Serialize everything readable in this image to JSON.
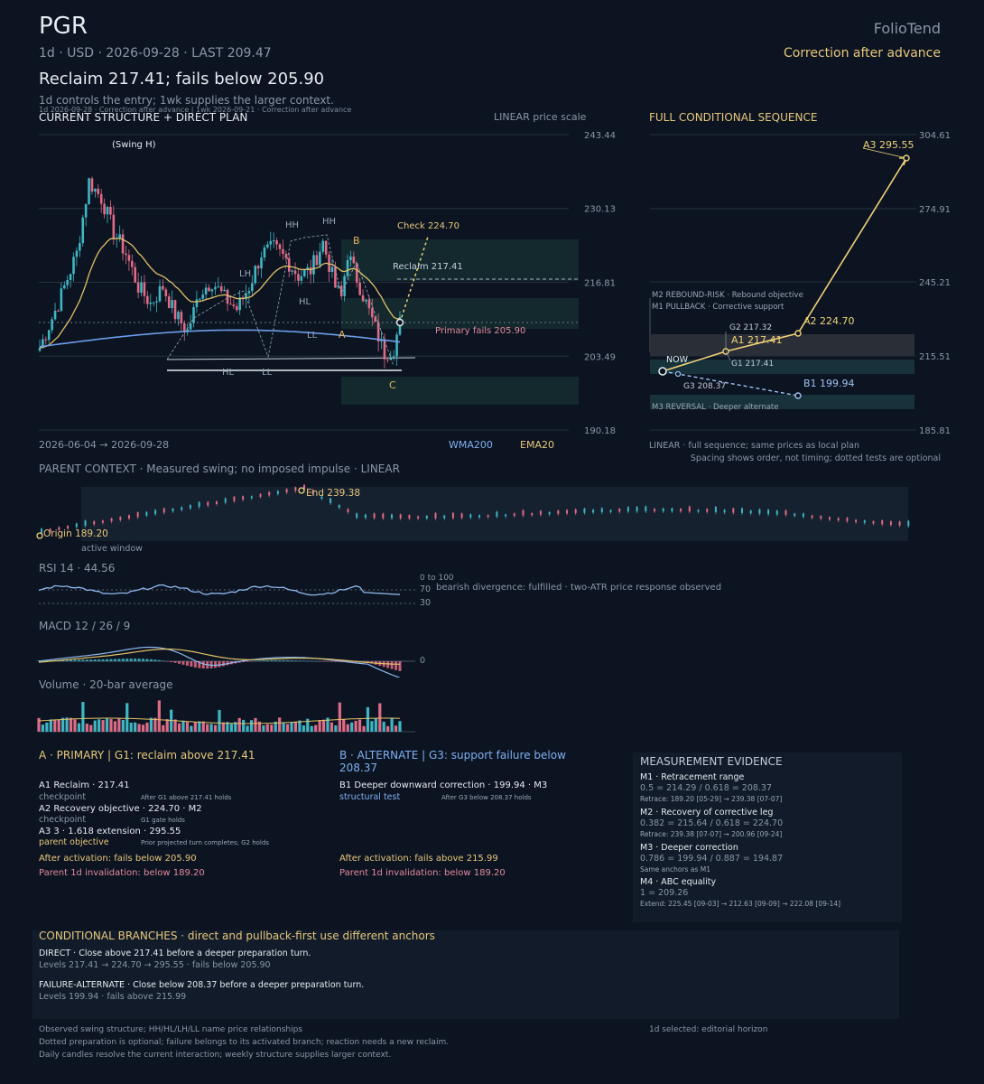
{
  "header": {
    "ticker": "PGR",
    "brand": "FolioTend",
    "meta": "1d · USD · 2026-09-28 · LAST 209.47",
    "status": "Correction after advance",
    "headline": "Reclaim 217.41; fails below 205.90",
    "subline": "1d controls the entry; 1wk supplies the larger context.",
    "overlap_note": "1d 2026-09-28 · Correction after advance | 1wk 2026-09-21 · Correction after advance"
  },
  "main": {
    "title": "CURRENT STRUCTURE + DIRECT PLAN",
    "scale": "LINEAR price scale",
    "range": "2026-06-04 → 2026-09-28",
    "legend_wma": "WMA200",
    "legend_ema": "EMA20"
  },
  "seq": {
    "title": "FULL CONDITIONAL SEQUENCE",
    "footer1": "LINEAR · full sequence; same prices as local plan",
    "footer2": "Spacing shows order, not timing; dotted tests are optional"
  },
  "parent": {
    "title": "PARENT CONTEXT · Measured swing; no imposed impulse · LINEAR",
    "origin": "Origin 189.20",
    "end": "End 239.38",
    "window": "active window"
  },
  "rsi": {
    "title": "RSI 14 · 44.56",
    "range": "0 to 100",
    "l70": "70",
    "l30": "30",
    "note": "bearish divergence: fulfilled · two-ATR price response observed"
  },
  "macd": {
    "title": "MACD 12 / 26 / 9",
    "zero": "0"
  },
  "volume": {
    "title": "Volume · 20-bar average"
  },
  "planA": {
    "title": "A · PRIMARY | G1: reclaim above 217.41",
    "items": [
      {
        "label": "A1 Reclaim · 217.41",
        "tag": "checkpoint",
        "note": "After G1 above 217.41 holds"
      },
      {
        "label": "A2 Recovery objective · 224.70 · M2",
        "tag": "checkpoint",
        "note": "G1 gate holds"
      },
      {
        "label": "A3 3 · 1.618 extension · 295.55",
        "tag": "parent objective",
        "note": "Prior projected turn completes; G2 holds"
      }
    ],
    "after": "After activation: fails below 205.90",
    "parent_inv": "Parent 1d invalidation: below 189.20"
  },
  "planB": {
    "title1": "B · ALTERNATE | G3: support failure below",
    "title2": "208.37",
    "item_label": "B1 Deeper downward correction · 199.94 · M3",
    "item_tag": "structural test",
    "item_note": "After G3 below 208.37 holds",
    "after": "After activation: fails above 215.99",
    "parent_inv": "Parent 1d invalidation: below 189.20"
  },
  "evidence": {
    "title": "MEASUREMENT EVIDENCE",
    "items": [
      {
        "name": "M1 · Retracement range",
        "value": "0.5 = 214.29 / 0.618 = 208.37",
        "detail": "Retrace: 189.20 [05-29] → 239.38 [07-07]"
      },
      {
        "name": "M2 · Recovery of corrective leg",
        "value": "0.382 = 215.64 / 0.618 = 224.70",
        "detail": "Retrace: 239.38 [07-07] → 200.96 [09-24]"
      },
      {
        "name": "M3 · Deeper correction",
        "value": "0.786 = 199.94 / 0.887 = 194.87",
        "detail": "Same anchors as M1"
      },
      {
        "name": "M4 · ABC equality",
        "value": "1 = 209.26",
        "detail": "Extend: 225.45 [09-03] → 212.63 [09-09] → 222.08 [09-14]"
      }
    ]
  },
  "branches": {
    "title": "CONDITIONAL BRANCHES · direct and pullback-first use different anchors",
    "direct": "DIRECT · Close above 217.41 before a deeper preparation turn.",
    "direct_levels": "Levels 217.41 → 224.70 → 295.55 · fails below 205.90",
    "failure": "FAILURE-ALTERNATE · Close below 208.37 before a deeper preparation turn.",
    "failure_levels": "Levels 199.94 · fails above 215.99"
  },
  "footer": {
    "l1": "Observed swing structure; HH/HL/LH/LL name price relationships",
    "l2": "Dotted preparation is optional; failure belongs to its activated branch; reaction needs a new reclaim.",
    "l3": "Daily candles resolve the current interaction; weekly structure supplies larger context.",
    "right": "1d selected: editorial horizon"
  },
  "chart_data": [
    {
      "type": "candlestick",
      "title": "CURRENT STRUCTURE + DIRECT PLAN",
      "x_range": [
        "2026-06-04",
        "2026-09-28"
      ],
      "y_ticks": [
        243.44,
        230.13,
        216.81,
        203.49,
        190.18
      ],
      "ylim": [
        190.18,
        243.44
      ],
      "series": [
        {
          "name": "WMA200",
          "color": "#6d9eea"
        },
        {
          "name": "EMA20",
          "color": "#e2c168"
        }
      ],
      "annotations": [
        "(Swing H)",
        "HH",
        "HH",
        "LH",
        "HL",
        "LL",
        "HL",
        "LL",
        "A",
        "B",
        "C",
        "Check 224.70",
        "Reclaim 217.41",
        "Primary fails 205.90"
      ],
      "levels": {
        "check": 224.7,
        "reclaim": 217.41,
        "fails": 205.9
      }
    },
    {
      "type": "line",
      "title": "FULL CONDITIONAL SEQUENCE",
      "y_ticks": [
        304.61,
        274.91,
        245.21,
        215.51,
        185.81
      ],
      "ylim": [
        185.81,
        304.61
      ],
      "points": [
        {
          "label": "NOW",
          "value": 209.47
        },
        {
          "label": "G3 208.37",
          "value": 208.37
        },
        {
          "label": "A1 217.41",
          "value": 217.41
        },
        {
          "label": "G2 217.32",
          "value": 217.32
        },
        {
          "label": "G1 217.41",
          "value": 217.41
        },
        {
          "label": "A2 224.70",
          "value": 224.7
        },
        {
          "label": "A3 295.55",
          "value": 295.55
        },
        {
          "label": "B1 199.94",
          "value": 199.94
        }
      ],
      "zones": [
        "M2 REBOUND-RISK · Rebound objective",
        "M1 PULLBACK · Corrective support",
        "M3 REVERSAL · Deeper alternate"
      ]
    },
    {
      "type": "line",
      "title": "RSI 14 · 44.56",
      "ylim": [
        0,
        100
      ],
      "levels": [
        70,
        30
      ],
      "last": 44.56
    }
  ]
}
